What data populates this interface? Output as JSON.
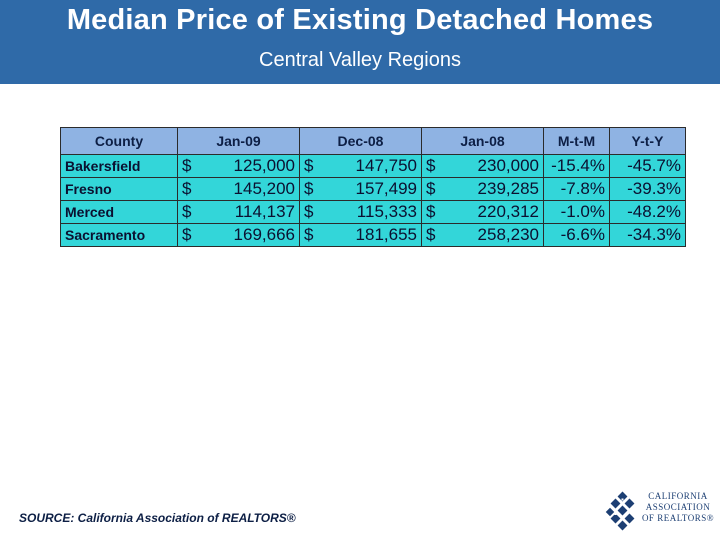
{
  "slide": {
    "title": "Median Price of Existing Detached Homes",
    "subtitle": "Central Valley Regions",
    "source": "SOURCE: California Association of REALTORS®"
  },
  "table": {
    "headers": [
      "County",
      "Jan-09",
      "Dec-08",
      "Jan-08",
      "M-t-M",
      "Y-t-Y"
    ],
    "currency_symbol": "$",
    "rows": [
      {
        "county": "Bakersfield",
        "jan09": "125,000",
        "dec08": "147,750",
        "jan08": "230,000",
        "mtm": "-15.4%",
        "yty": "-45.7%"
      },
      {
        "county": "Fresno",
        "jan09": "145,200",
        "dec08": "157,499",
        "jan08": "239,285",
        "mtm": "-7.8%",
        "yty": "-39.3%"
      },
      {
        "county": "Merced",
        "jan09": "114,137",
        "dec08": "115,333",
        "jan08": "220,312",
        "mtm": "-1.0%",
        "yty": "-48.2%"
      },
      {
        "county": "Sacramento",
        "jan09": "169,666",
        "dec08": "181,655",
        "jan08": "258,230",
        "mtm": "-6.6%",
        "yty": "-34.3%"
      }
    ]
  },
  "logo": {
    "lines": [
      "CALIFORNIA",
      "ASSOCIATION",
      "OF REALTORS®"
    ],
    "icon": "car-logo-icon"
  },
  "colors": {
    "header_bg": "#2f6aa8",
    "table_header_bg": "#8fb3e3",
    "table_body_bg": "#33d6d9",
    "text_dark": "#0d1f45"
  }
}
